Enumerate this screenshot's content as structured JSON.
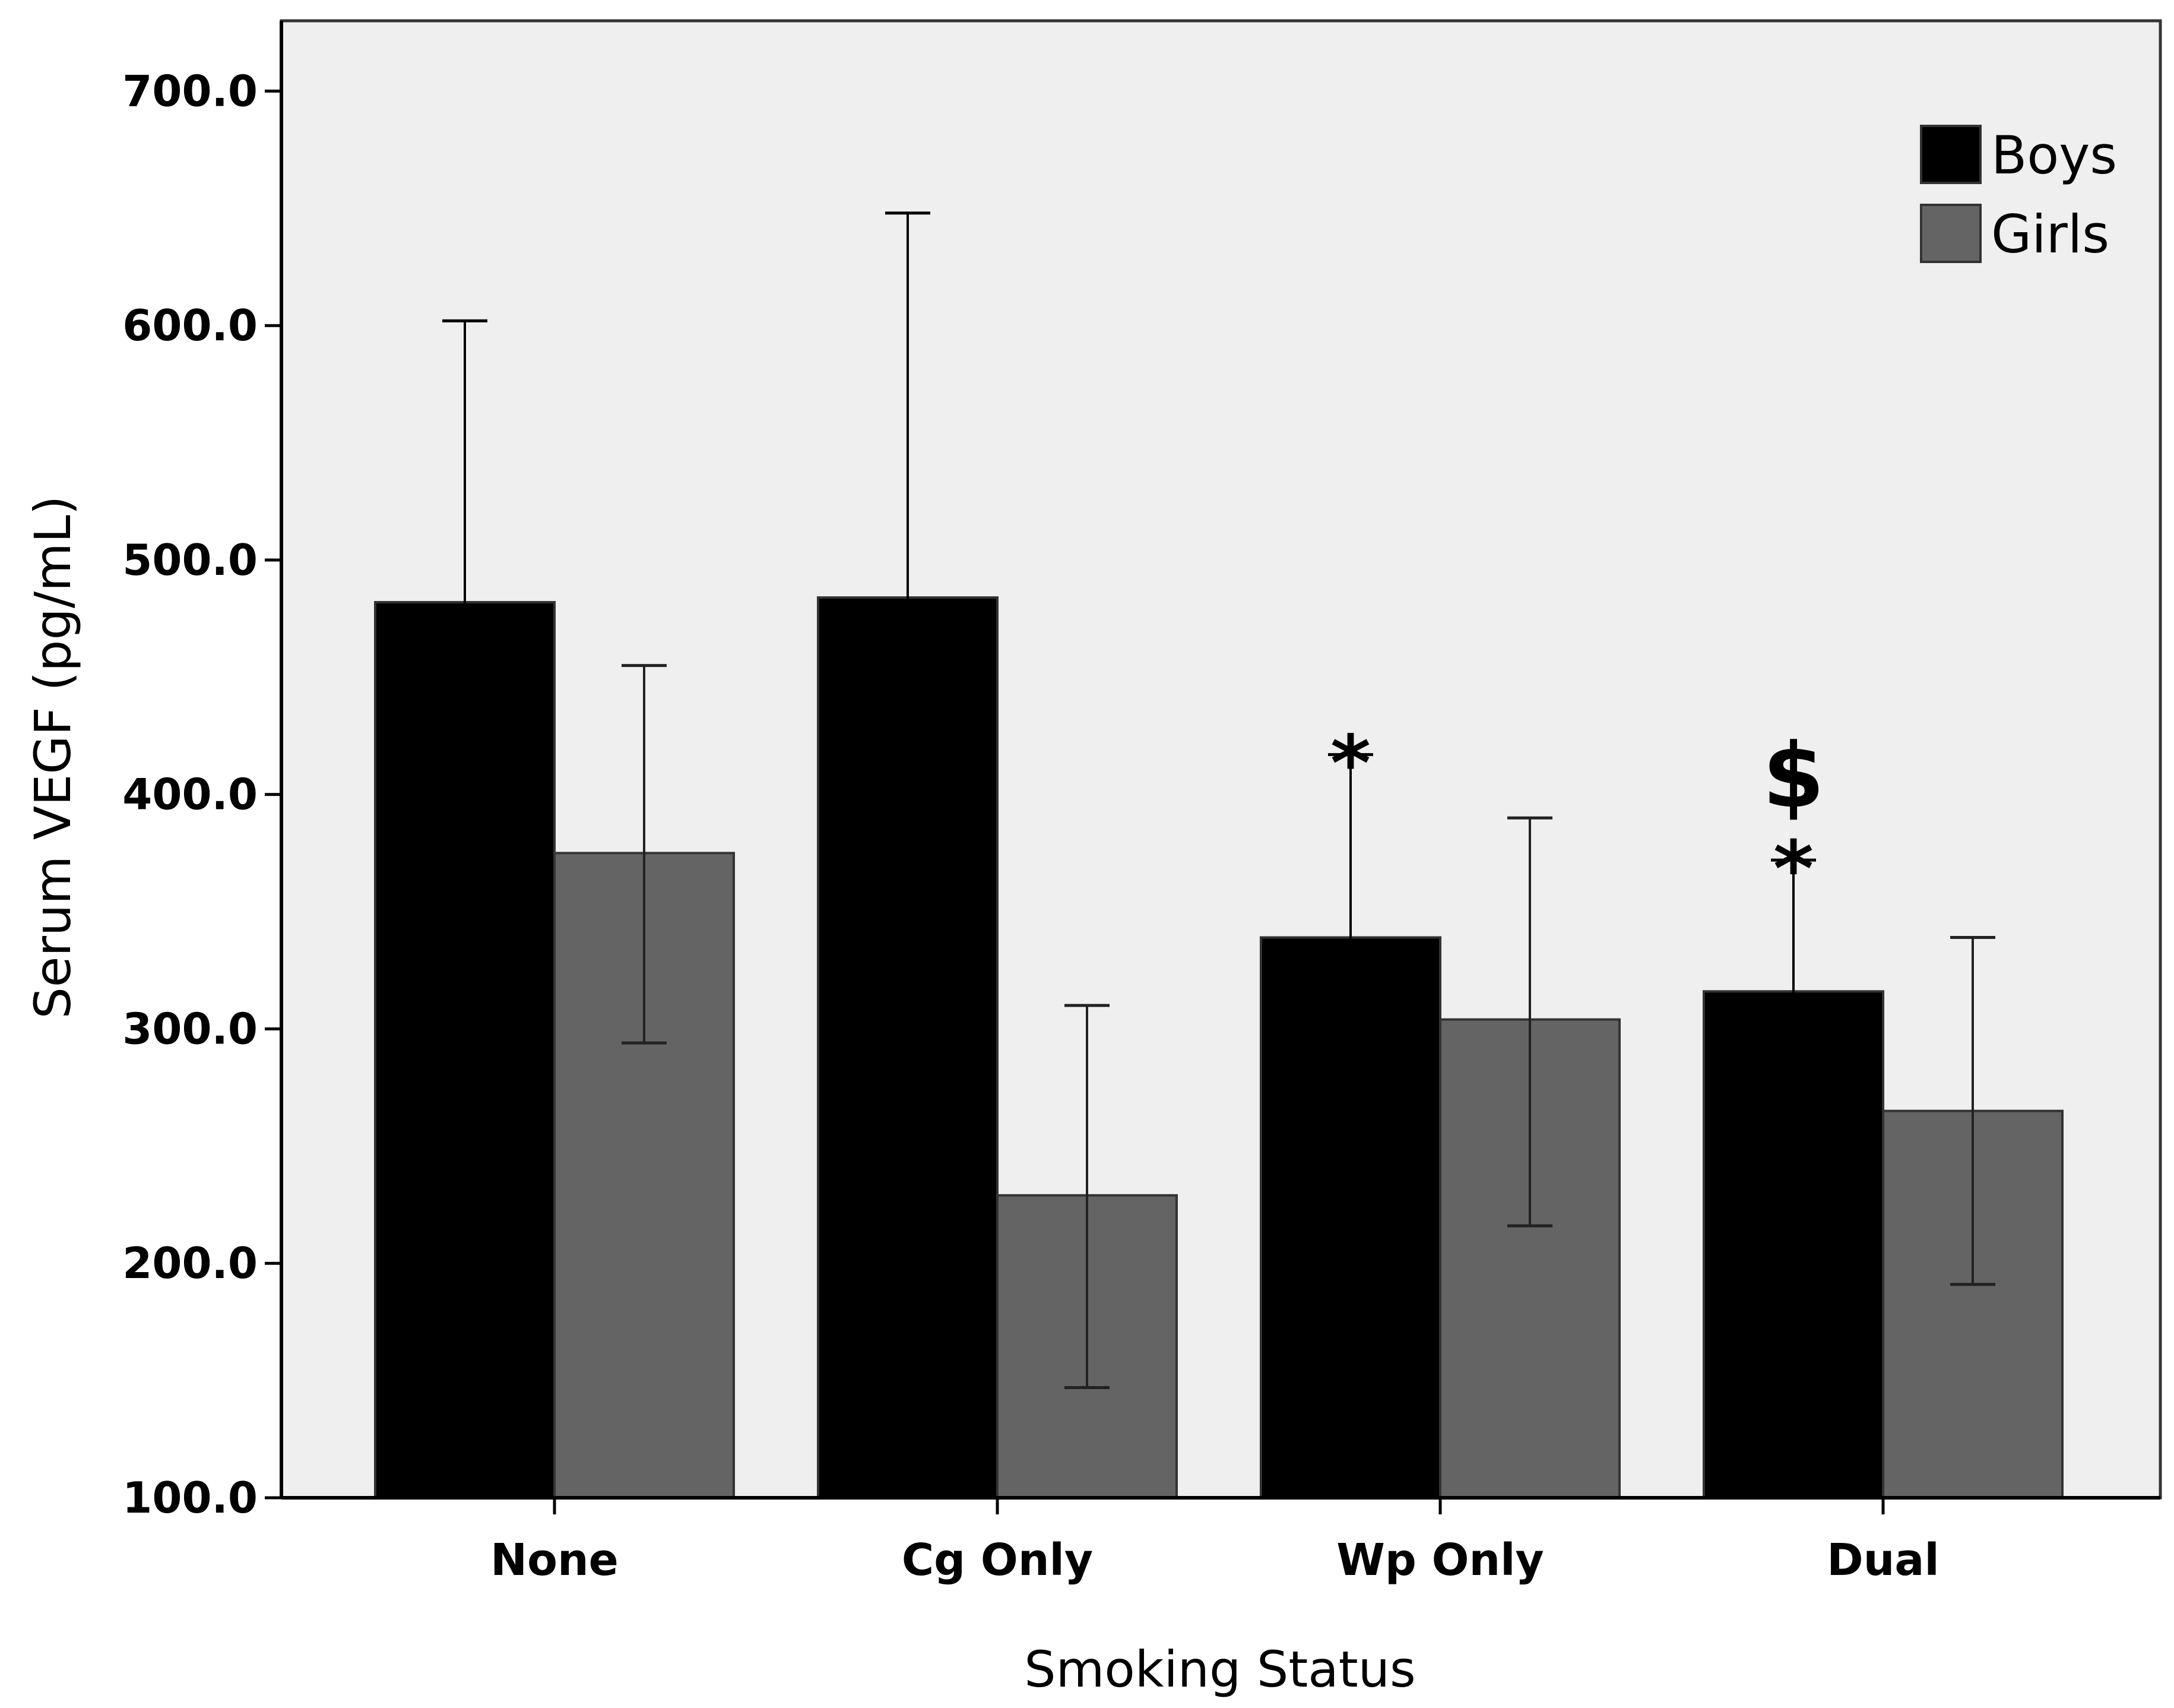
{
  "chart_data": {
    "type": "bar",
    "title": "",
    "xlabel": "Smoking Status",
    "ylabel": "Serum VEGF (pg/mL)",
    "ylim": [
      100,
      730
    ],
    "yticks": [
      100,
      200,
      300,
      400,
      500,
      600,
      700
    ],
    "ytick_labels": [
      "100.0",
      "200.0",
      "300.0",
      "400.0",
      "500.0",
      "600.0",
      "700.0"
    ],
    "categories": [
      "None",
      "Cg Only",
      "Wp Only",
      "Dual"
    ],
    "series": [
      {
        "name": "Boys",
        "color": "#000000",
        "values": [
          482,
          484,
          339,
          316
        ],
        "err_low": [
          400,
          402,
          295,
          273
        ],
        "err_high": [
          602,
          648,
          417,
          372
        ]
      },
      {
        "name": "Girls",
        "color": "#646464",
        "values": [
          375,
          229,
          304,
          265
        ],
        "err_low": [
          294,
          147,
          216,
          191
        ],
        "err_high": [
          455,
          310,
          390,
          339
        ]
      }
    ],
    "annotations": [
      {
        "category": "Wp Only",
        "series": "Boys",
        "symbols": [
          "*"
        ]
      },
      {
        "category": "Dual",
        "series": "Boys",
        "symbols": [
          "*",
          "$"
        ]
      }
    ],
    "legend_position": "top-right",
    "grid": false,
    "plot_background": "#efefef"
  }
}
